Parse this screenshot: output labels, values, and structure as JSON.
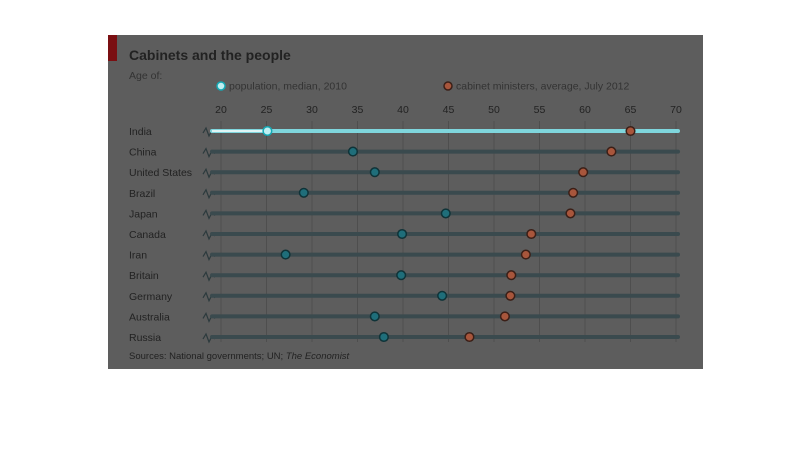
{
  "header": {
    "title": "Cabinets and the people",
    "subtitle": "Age of:"
  },
  "legend": {
    "population_label": "population, median, 2010",
    "ministers_label": "cabinet ministers, average, July 2012"
  },
  "footer": {
    "source_prefix": "Sources: National governments; UN; ",
    "source_publication": "The Economist"
  },
  "colors": {
    "panel": "#5d5d5d",
    "accent": "#7a0f12",
    "track": "#3a4a4e",
    "population_fill": "#1f6e7a",
    "population_fill_highlight": "#bfeff2",
    "population_stroke_highlight": "#14a9b5",
    "ministers_fill": "#a8563c",
    "ministers_stroke": "#3b1f17"
  },
  "chart_data": {
    "type": "dot",
    "title": "Cabinets and the people",
    "subtitle": "Age of:",
    "x_ticks": [
      20,
      25,
      30,
      35,
      40,
      45,
      50,
      55,
      60,
      65,
      70
    ],
    "xlim": [
      20,
      70
    ],
    "categories": [
      "India",
      "China",
      "United States",
      "Brazil",
      "Japan",
      "Canada",
      "Iran",
      "Britain",
      "Germany",
      "Australia",
      "Russia"
    ],
    "series": [
      {
        "name": "population, median, 2010",
        "values": [
          25.1,
          34.5,
          36.9,
          29.1,
          44.7,
          39.9,
          27.1,
          39.8,
          44.3,
          36.9,
          37.9
        ]
      },
      {
        "name": "cabinet ministers, average, July 2012",
        "values": [
          65.0,
          62.9,
          59.8,
          58.7,
          58.4,
          54.1,
          53.5,
          51.9,
          51.8,
          51.2,
          47.3
        ]
      }
    ],
    "grid": true,
    "legend_position": "top"
  }
}
